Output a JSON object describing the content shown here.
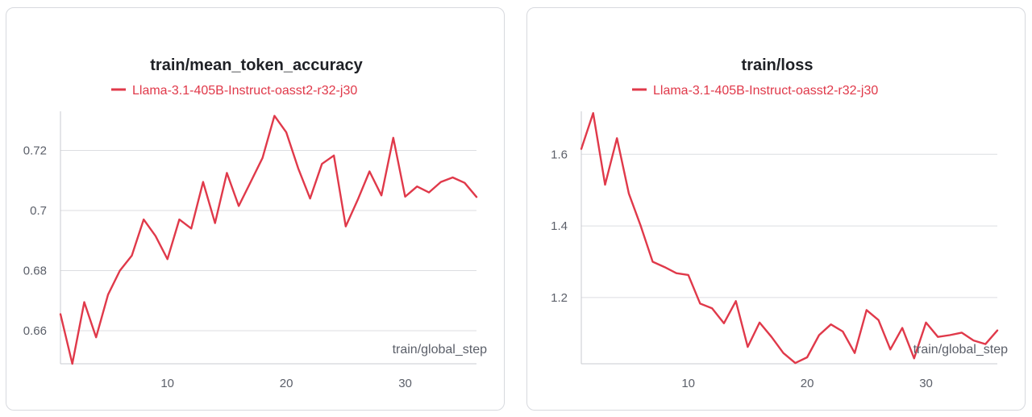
{
  "colors": {
    "series": "#e0394a"
  },
  "chart_data": [
    {
      "type": "line",
      "title": "train/mean_token_accuracy",
      "xlabel": "train/global_step",
      "ylabel": "",
      "xlim": [
        1,
        36
      ],
      "ylim": [
        0.649,
        0.733
      ],
      "xticks": [
        10,
        20,
        30
      ],
      "yticks": [
        0.66,
        0.68,
        0.7,
        0.72
      ],
      "ytick_labels": [
        "0.66",
        "0.68",
        "0.7",
        "0.72"
      ],
      "grid": true,
      "legend": "top-center",
      "series": [
        {
          "name": "Llama-3.1-405B-Instruct-oasst2-r32-j30",
          "x": [
            1,
            2,
            3,
            4,
            5,
            6,
            7,
            8,
            9,
            10,
            11,
            12,
            13,
            14,
            15,
            16,
            17,
            18,
            19,
            20,
            21,
            22,
            23,
            24,
            25,
            26,
            27,
            28,
            29,
            30,
            31,
            32,
            33,
            34,
            35,
            36
          ],
          "y": [
            0.6655,
            0.649,
            0.6695,
            0.6578,
            0.672,
            0.68,
            0.685,
            0.697,
            0.6915,
            0.6838,
            0.697,
            0.694,
            0.7095,
            0.6958,
            0.7125,
            0.7015,
            0.7095,
            0.7175,
            0.7315,
            0.726,
            0.714,
            0.704,
            0.7155,
            0.7183,
            0.6947,
            0.7035,
            0.713,
            0.705,
            0.7242,
            0.7046,
            0.708,
            0.706,
            0.7095,
            0.711,
            0.7092,
            0.7045
          ]
        }
      ]
    },
    {
      "type": "line",
      "title": "train/loss",
      "xlabel": "train/global_step",
      "ylabel": "",
      "xlim": [
        1,
        36
      ],
      "ylim": [
        1.015,
        1.72
      ],
      "xticks": [
        10,
        20,
        30
      ],
      "yticks": [
        1.2,
        1.4,
        1.6
      ],
      "ytick_labels": [
        "1.2",
        "1.4",
        "1.6"
      ],
      "grid": true,
      "legend": "top-center",
      "series": [
        {
          "name": "Llama-3.1-405B-Instruct-oasst2-r32-j30",
          "x": [
            1,
            2,
            3,
            4,
            5,
            6,
            7,
            8,
            9,
            10,
            11,
            12,
            13,
            14,
            15,
            16,
            17,
            18,
            19,
            20,
            21,
            22,
            23,
            24,
            25,
            26,
            27,
            28,
            29,
            30,
            31,
            32,
            33,
            34,
            35,
            36
          ],
          "y": [
            1.615,
            1.715,
            1.515,
            1.645,
            1.49,
            1.4,
            1.3,
            1.285,
            1.268,
            1.263,
            1.183,
            1.17,
            1.128,
            1.19,
            1.062,
            1.13,
            1.09,
            1.045,
            1.017,
            1.033,
            1.095,
            1.125,
            1.105,
            1.045,
            1.165,
            1.137,
            1.055,
            1.115,
            1.03,
            1.13,
            1.09,
            1.095,
            1.102,
            1.08,
            1.07,
            1.108
          ]
        }
      ]
    }
  ]
}
